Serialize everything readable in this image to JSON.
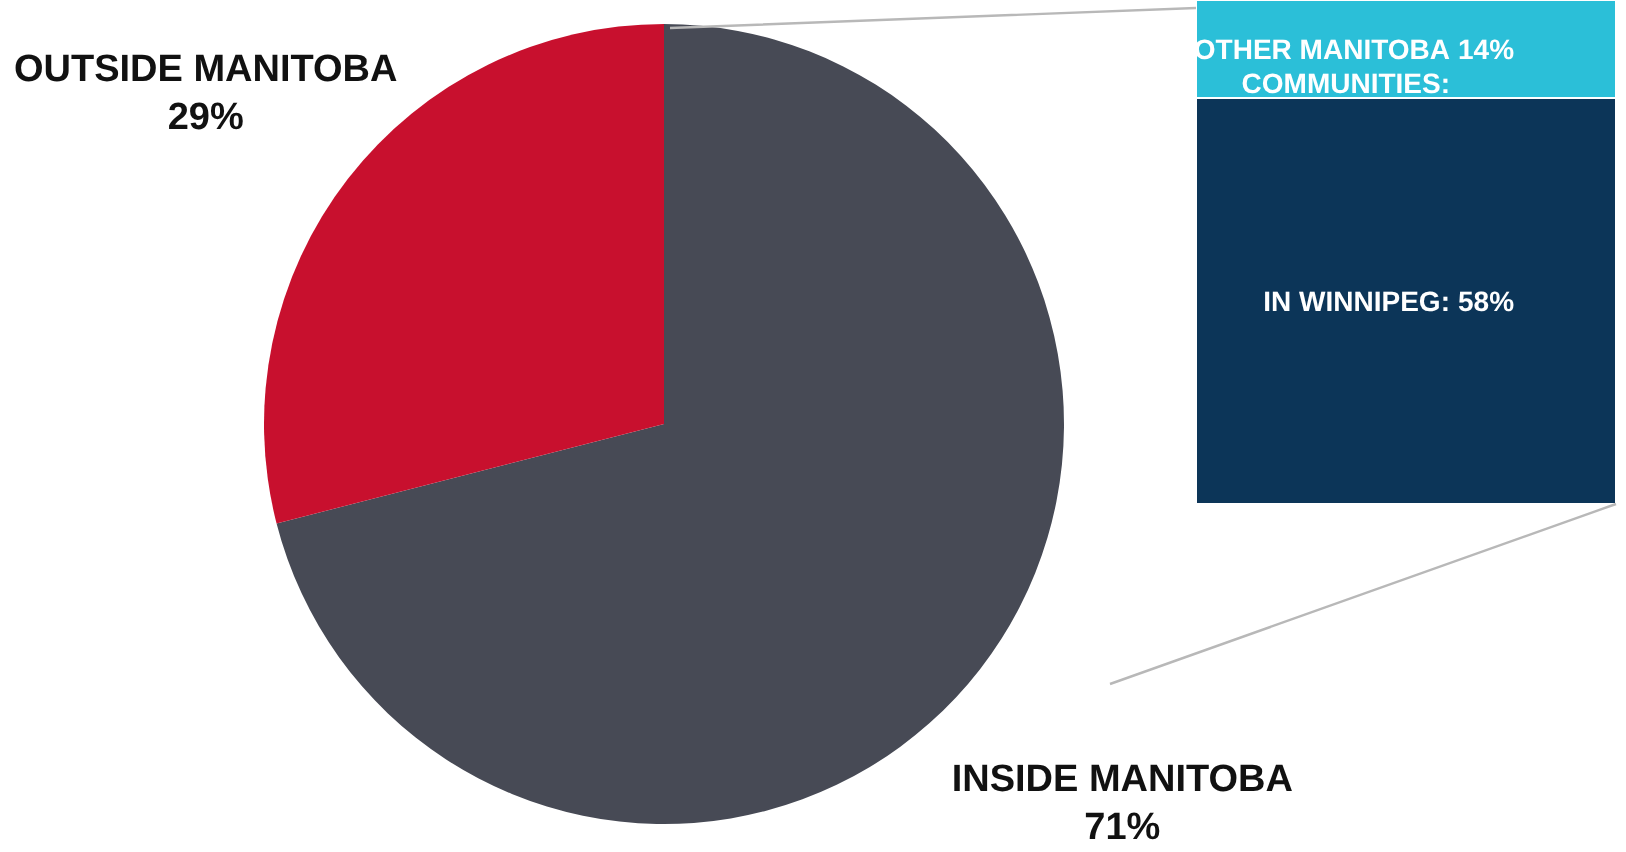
{
  "chart_data": [
    {
      "type": "pie",
      "categories": [
        "INSIDE MANITOBA",
        "OUTSIDE MANITOBA"
      ],
      "values": [
        71,
        29
      ],
      "colors": [
        "#474a55",
        "#c8102e"
      ],
      "value_labels": [
        "71%",
        "29%"
      ]
    },
    {
      "type": "bar",
      "categories": [
        null
      ],
      "stacked": true,
      "series": [
        {
          "name": "IN WINNIPEG:",
          "color": "#0c3558",
          "values": [
            58
          ],
          "value_labels": [
            "58%"
          ]
        },
        {
          "name": "OTHER MANITOBA COMMUNITIES:",
          "color": "#2bbfd8",
          "values": [
            14
          ],
          "value_labels": [
            "14%"
          ]
        }
      ]
    }
  ]
}
